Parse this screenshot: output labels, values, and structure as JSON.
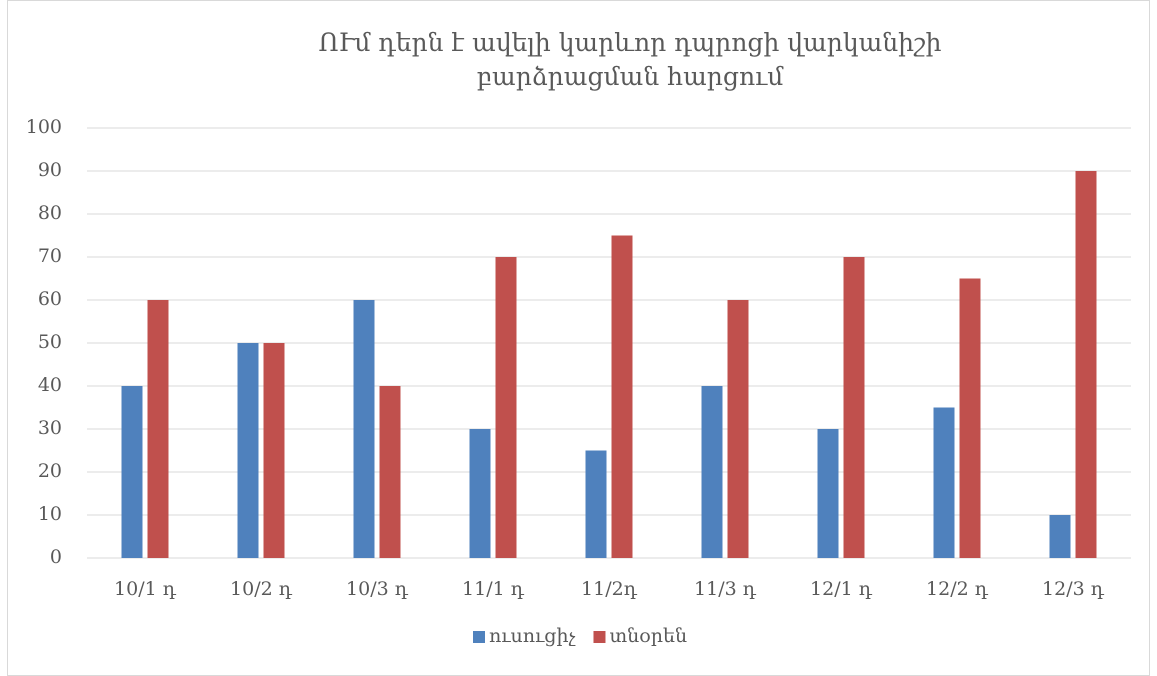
{
  "chart_data": {
    "type": "bar",
    "title": "ՈՒմ դերն է ավելի կարևոր դպրոցի վարկանիշի բարձրացման հարցում",
    "categories": [
      "10/1 դ",
      "10/2 դ",
      "10/3 դ",
      "11/1 դ",
      "11/2դ",
      "11/3 դ",
      "12/1 դ",
      "12/2 դ",
      "12/3 դ"
    ],
    "series": [
      {
        "name": "ուսուցիչ",
        "color": "#4f81bd",
        "values": [
          40,
          50,
          60,
          30,
          25,
          40,
          30,
          35,
          10
        ]
      },
      {
        "name": "տնօրեն",
        "color": "#c0504d",
        "values": [
          60,
          50,
          40,
          70,
          75,
          60,
          70,
          65,
          90
        ]
      }
    ],
    "ylim": [
      0,
      100
    ],
    "yticks": [
      0,
      10,
      20,
      30,
      40,
      50,
      60,
      70,
      80,
      90,
      100
    ],
    "grid": true,
    "legend": "bottom"
  }
}
